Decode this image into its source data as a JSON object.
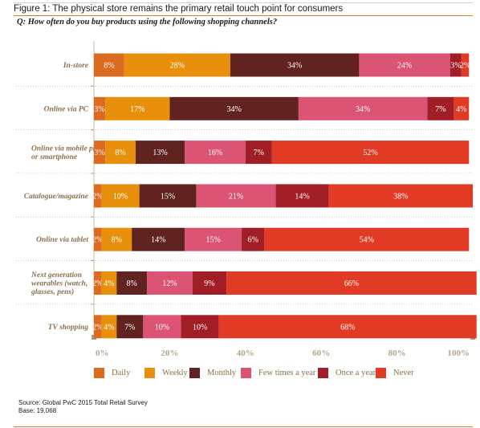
{
  "figure_title": "Figure 1: The physical store remains the primary retail touch point for consumers",
  "question": "Q: How often do you buy products using the following shopping channels?",
  "chart_data": {
    "type": "bar",
    "orientation": "horizontal",
    "stacked": true,
    "categories": [
      [
        "In-store"
      ],
      [
        "Online via PC"
      ],
      [
        "Online via mobile phone",
        "or smartphone"
      ],
      [
        "Catalogue/magazine"
      ],
      [
        "Online via tablet"
      ],
      [
        "Next generation",
        "wearables (watch,",
        "glasses, pens)"
      ],
      [
        "TV shopping"
      ]
    ],
    "series": [
      {
        "name": "Daily",
        "color": "#db6b1f",
        "values": [
          8,
          3,
          3,
          2,
          2,
          2,
          2
        ]
      },
      {
        "name": "Weekly",
        "color": "#e8900c",
        "values": [
          28,
          17,
          8,
          10,
          8,
          4,
          4
        ]
      },
      {
        "name": "Monthly",
        "color": "#602320",
        "values": [
          34,
          34,
          13,
          15,
          14,
          8,
          7
        ]
      },
      {
        "name": "Few times a year",
        "color": "#dc5474",
        "values": [
          24,
          34,
          16,
          21,
          15,
          12,
          10
        ]
      },
      {
        "name": "Once a year",
        "color": "#a21e26",
        "values": [
          3,
          7,
          7,
          14,
          6,
          9,
          10
        ]
      },
      {
        "name": "Never",
        "color": "#e13a25",
        "values": [
          2,
          4,
          52,
          38,
          54,
          66,
          68
        ]
      }
    ],
    "tick_labels": [
      "0%",
      "20%",
      "40%",
      "60%",
      "80%",
      "100%"
    ],
    "xlim": [
      0,
      100
    ],
    "legend_position": "bottom",
    "grid": false
  },
  "source": "Source: Global PwC 2015 Total Retail Survey",
  "base": "Base: 19,068"
}
